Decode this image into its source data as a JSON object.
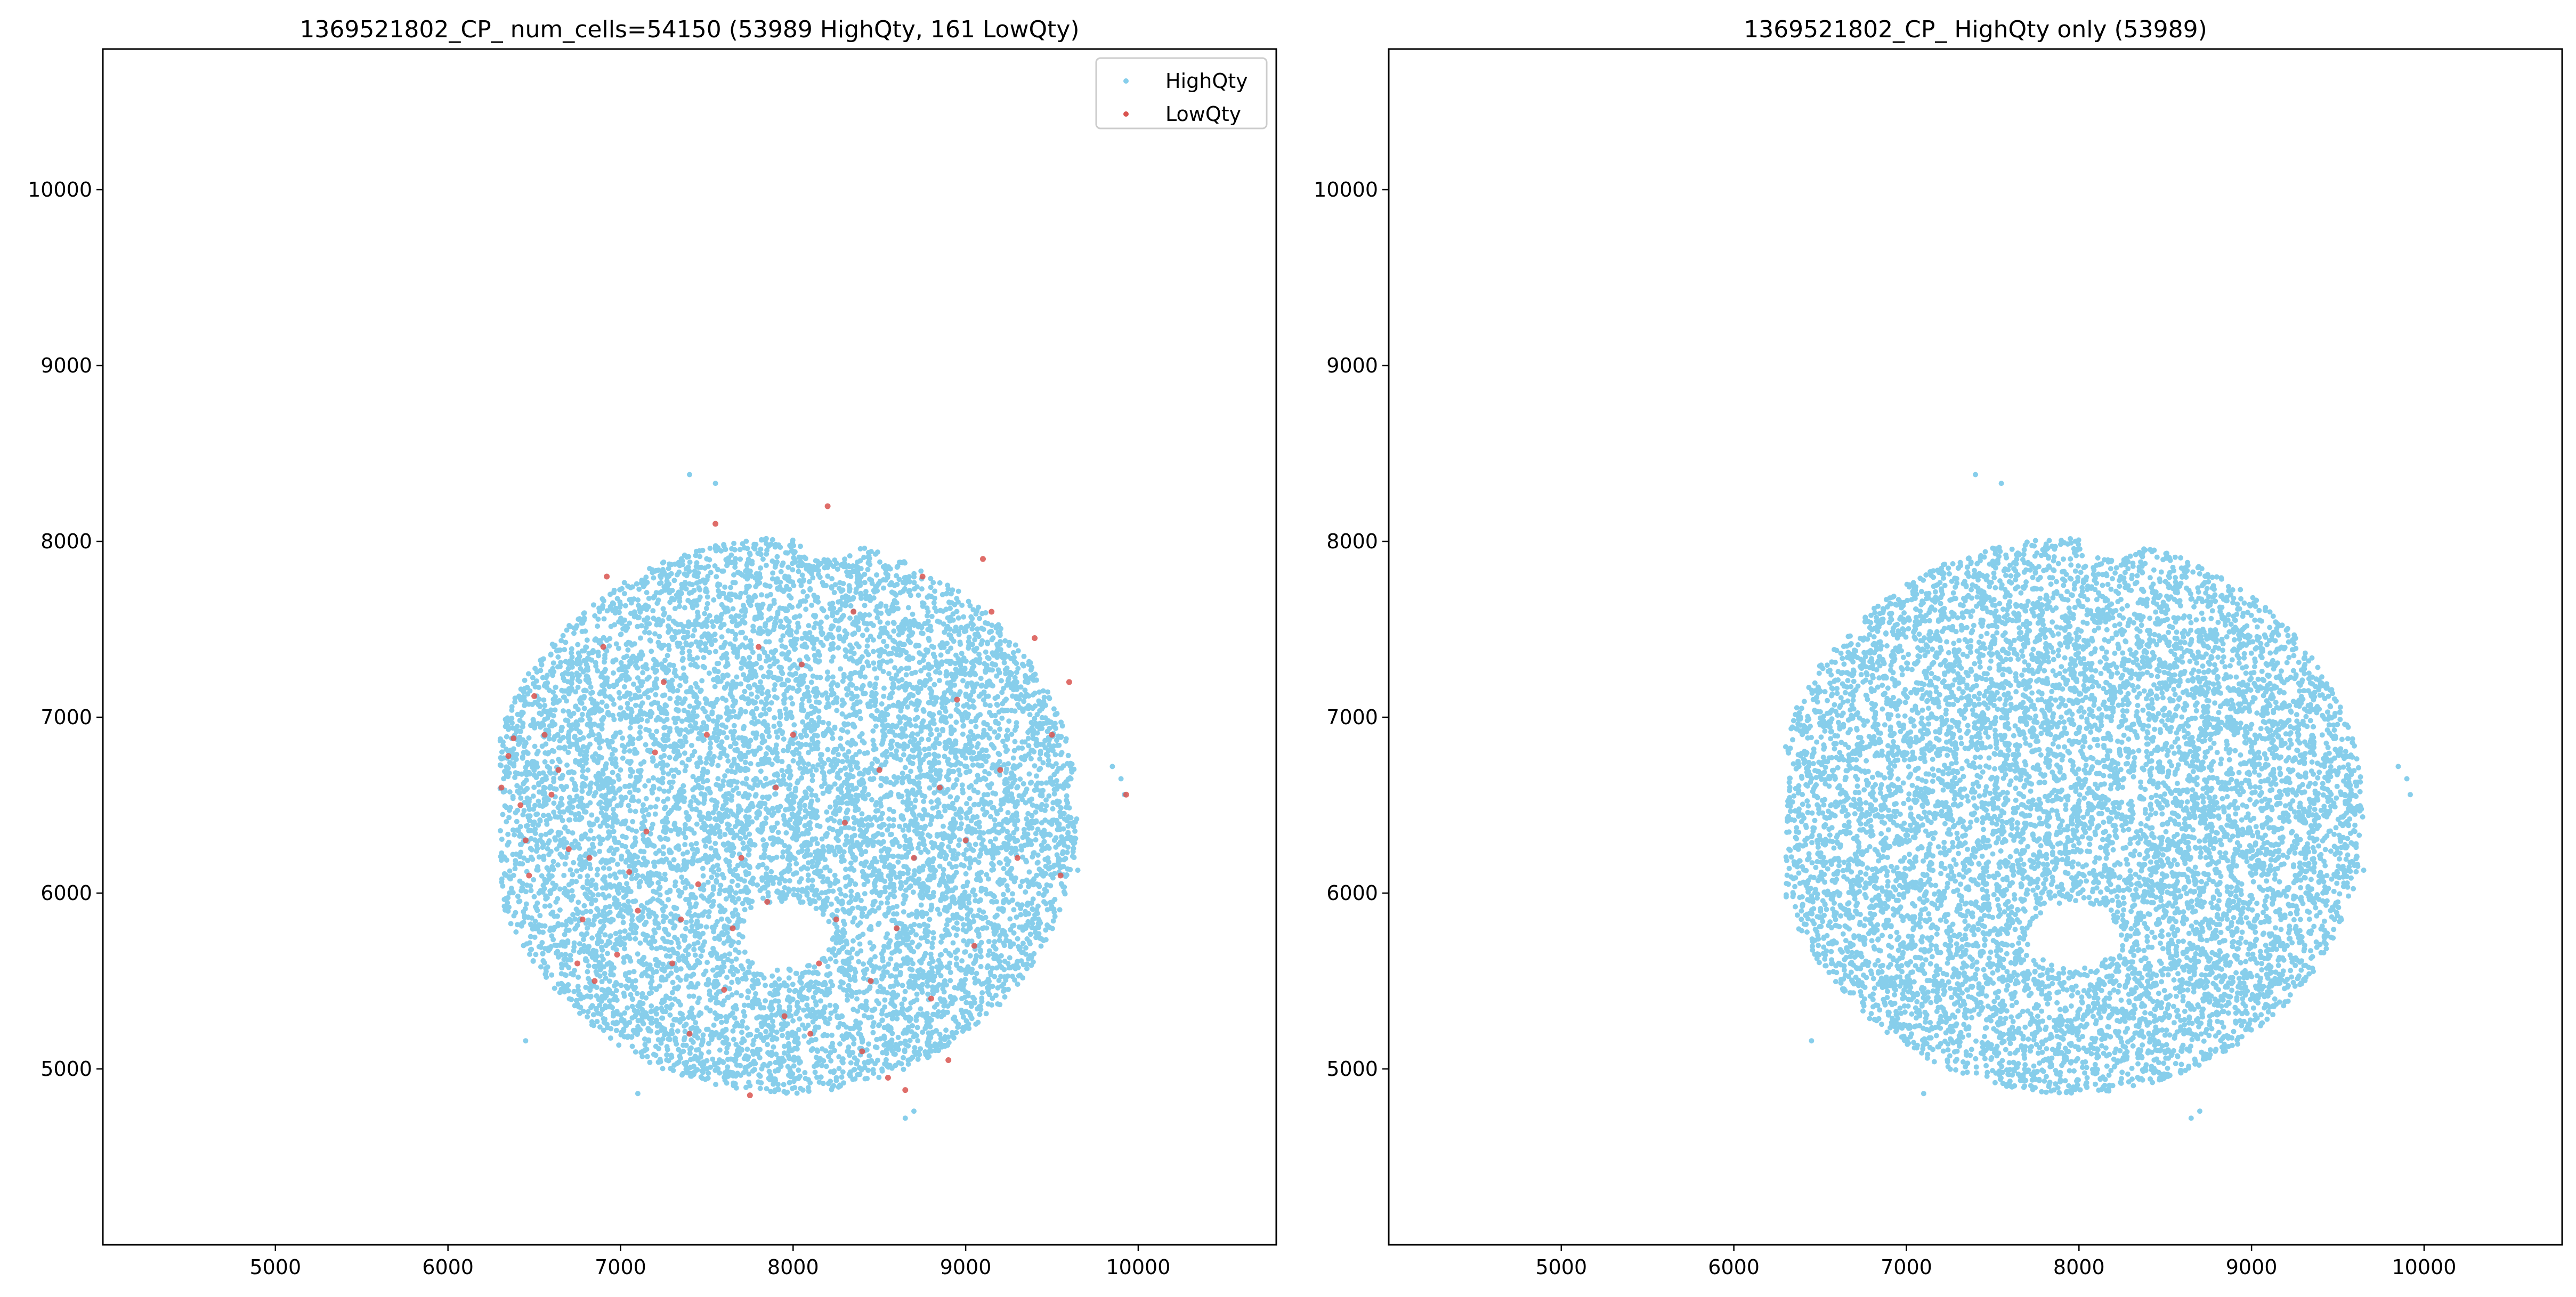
{
  "colors": {
    "high": "#87ceeb",
    "low": "#d9534f",
    "axis": "#000000",
    "background": "#ffffff"
  },
  "chart_data": [
    {
      "type": "scatter",
      "title": "1369521802_CP_ num_cells=54150 (53989 HighQty, 161 LowQty)",
      "xlabel": "",
      "ylabel": "",
      "xlim": [
        4000,
        10800
      ],
      "ylim": [
        4000,
        10800
      ],
      "xticks": [
        5000,
        6000,
        7000,
        8000,
        9000,
        10000
      ],
      "yticks": [
        5000,
        6000,
        7000,
        8000,
        9000,
        10000
      ],
      "legend": {
        "placement": "top-right",
        "entries": [
          "HighQty",
          "LowQty"
        ]
      },
      "grid": false,
      "series": [
        {
          "name": "HighQty",
          "count": 53989,
          "color": "#87ceeb",
          "region": {
            "center": [
              7950,
              6480
            ],
            "rx": 1650,
            "ry": 1650,
            "x_range": [
              6300,
              9950
            ],
            "y_range": [
              4800,
              8380
            ]
          }
        },
        {
          "name": "LowQty",
          "count": 161,
          "color": "#d9534f",
          "points": [
            [
              6310,
              6600
            ],
            [
              6350,
              6780
            ],
            [
              6380,
              6880
            ],
            [
              6420,
              6500
            ],
            [
              6450,
              6300
            ],
            [
              6470,
              6100
            ],
            [
              6500,
              7120
            ],
            [
              6560,
              6900
            ],
            [
              6600,
              6560
            ],
            [
              6640,
              6700
            ],
            [
              6700,
              6250
            ],
            [
              6750,
              5600
            ],
            [
              6780,
              5850
            ],
            [
              6820,
              6200
            ],
            [
              6850,
              5500
            ],
            [
              6900,
              7400
            ],
            [
              6920,
              7800
            ],
            [
              6980,
              5650
            ],
            [
              7050,
              6120
            ],
            [
              7100,
              5900
            ],
            [
              7150,
              6350
            ],
            [
              7200,
              6800
            ],
            [
              7250,
              7200
            ],
            [
              7300,
              5600
            ],
            [
              7350,
              5850
            ],
            [
              7400,
              5200
            ],
            [
              7450,
              6050
            ],
            [
              7500,
              6900
            ],
            [
              7550,
              8100
            ],
            [
              7600,
              5450
            ],
            [
              7650,
              5800
            ],
            [
              7700,
              6200
            ],
            [
              7750,
              4850
            ],
            [
              7800,
              7400
            ],
            [
              7850,
              5950
            ],
            [
              7900,
              6600
            ],
            [
              7950,
              5300
            ],
            [
              8000,
              6900
            ],
            [
              8050,
              7300
            ],
            [
              8100,
              5200
            ],
            [
              8150,
              5600
            ],
            [
              8200,
              8200
            ],
            [
              8250,
              5850
            ],
            [
              8300,
              6400
            ],
            [
              8350,
              7600
            ],
            [
              8400,
              5100
            ],
            [
              8450,
              5500
            ],
            [
              8500,
              6700
            ],
            [
              8550,
              4950
            ],
            [
              8600,
              5800
            ],
            [
              8650,
              4880
            ],
            [
              8700,
              6200
            ],
            [
              8750,
              7800
            ],
            [
              8800,
              5400
            ],
            [
              8850,
              6600
            ],
            [
              8900,
              5050
            ],
            [
              8950,
              7100
            ],
            [
              9000,
              6300
            ],
            [
              9050,
              5700
            ],
            [
              9100,
              7900
            ],
            [
              9150,
              7600
            ],
            [
              9200,
              6700
            ],
            [
              9300,
              6200
            ],
            [
              9400,
              7450
            ],
            [
              9500,
              6900
            ],
            [
              9550,
              6100
            ],
            [
              9600,
              7200
            ],
            [
              9930,
              6560
            ]
          ]
        }
      ]
    },
    {
      "type": "scatter",
      "title": "1369521802_CP_ HighQty only (53989)",
      "xlabel": "",
      "ylabel": "",
      "xlim": [
        4000,
        10800
      ],
      "ylim": [
        4000,
        10800
      ],
      "xticks": [
        5000,
        6000,
        7000,
        8000,
        9000,
        10000
      ],
      "yticks": [
        5000,
        6000,
        7000,
        8000,
        9000,
        10000
      ],
      "grid": false,
      "series": [
        {
          "name": "HighQty",
          "count": 53989,
          "color": "#87ceeb",
          "region": {
            "center": [
              7950,
              6480
            ],
            "rx": 1650,
            "ry": 1650,
            "x_range": [
              6300,
              9950
            ],
            "y_range": [
              4800,
              8380
            ]
          }
        }
      ]
    }
  ]
}
